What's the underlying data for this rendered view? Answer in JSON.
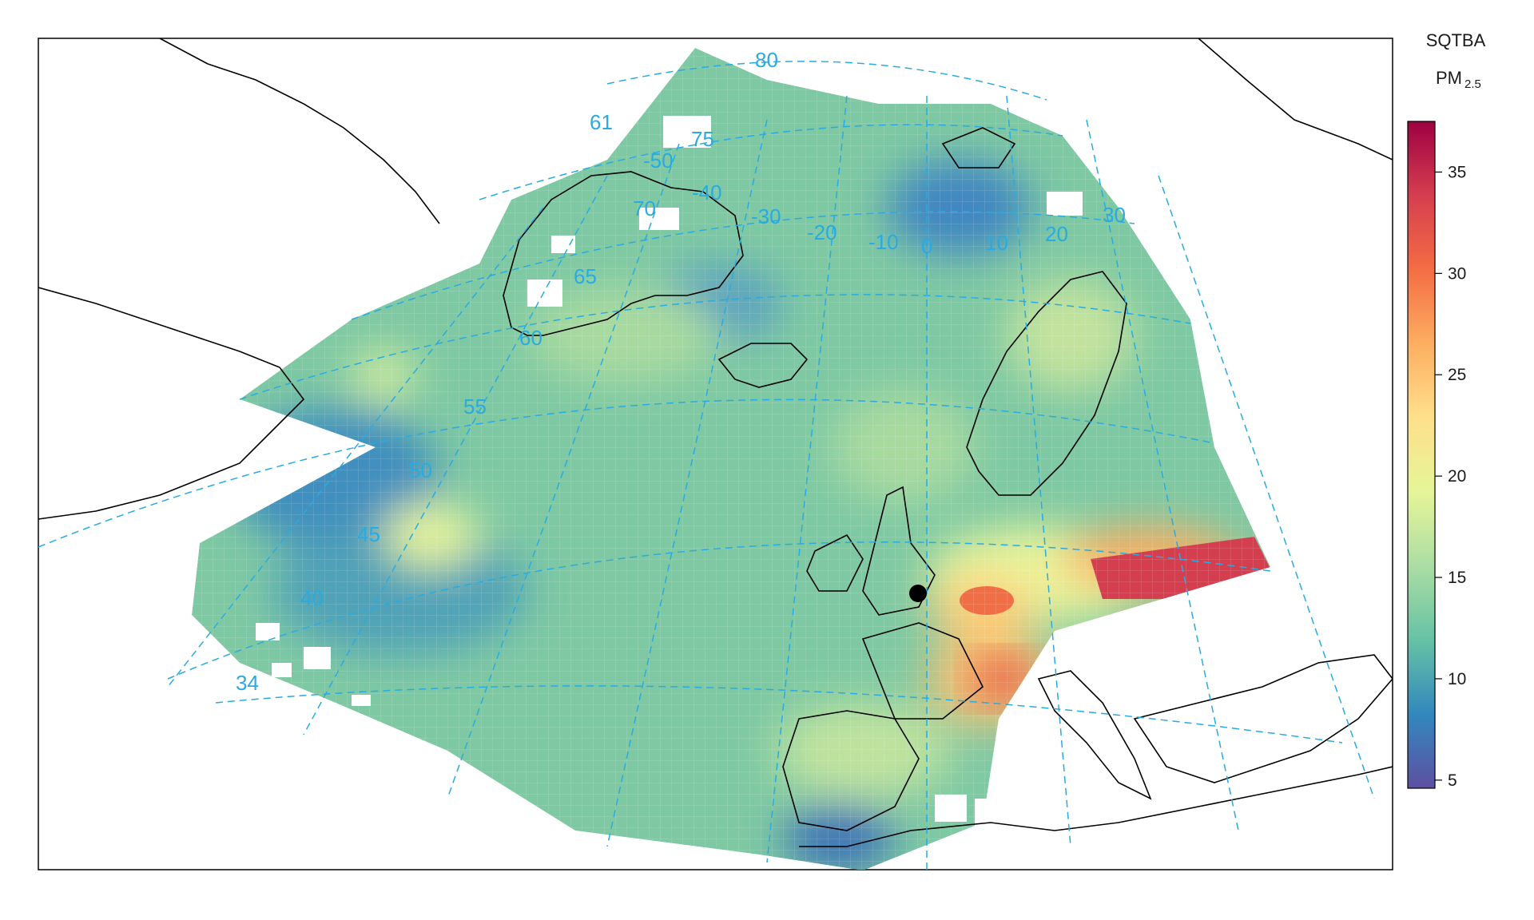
{
  "legend": {
    "title": "SQTBA",
    "variable_main": "PM",
    "variable_sub": "2.5",
    "min": 4.6,
    "max": 37.5,
    "ticks": [
      "5",
      "10",
      "15",
      "20",
      "25",
      "30",
      "35"
    ],
    "tick_values": [
      5,
      10,
      15,
      20,
      25,
      30,
      35
    ],
    "palette": [
      "#5e4fa2",
      "#3288bd",
      "#66c2a5",
      "#abdda4",
      "#e6f598",
      "#fee08b",
      "#fdae61",
      "#f46d43",
      "#d53e4f",
      "#9e0142"
    ]
  },
  "graticule": {
    "color": "#29abe2",
    "latitude_labels": [
      "80",
      "75",
      "70",
      "65",
      "61",
      "60",
      "55",
      "50",
      "45",
      "40",
      "34"
    ],
    "longitude_labels": [
      "-50",
      "-40",
      "-30",
      "-20",
      "-10",
      "0",
      "10",
      "20",
      "30"
    ]
  },
  "map": {
    "receptor_marker": "receptor-point",
    "land_outline_color": "#000000"
  }
}
